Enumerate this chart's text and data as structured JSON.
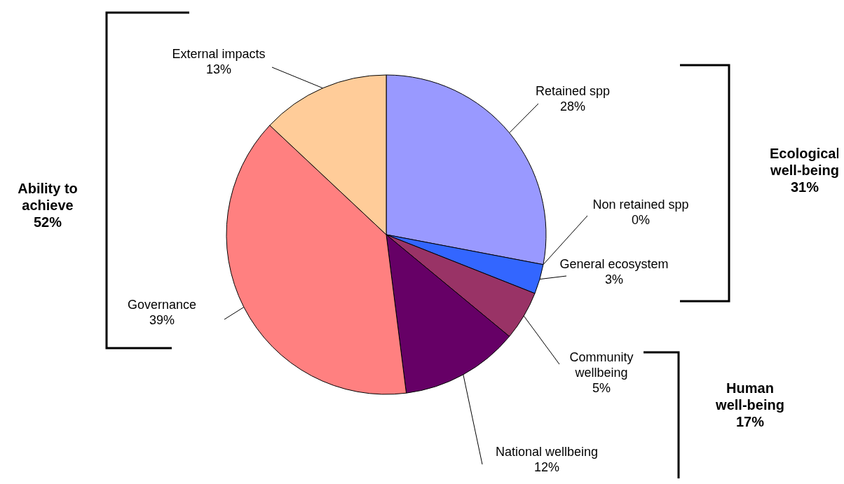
{
  "chart_data": {
    "type": "pie",
    "categories": [
      "Retained spp",
      "Non retained spp",
      "General ecosystem",
      "Community wellbeing",
      "National wellbeing",
      "Governance",
      "External impacts"
    ],
    "values": [
      28,
      0,
      3,
      5,
      12,
      39,
      13
    ],
    "value_labels": [
      "28%",
      "0%",
      "3%",
      "5%",
      "12%",
      "39%",
      "13%"
    ],
    "colors": [
      "#9999ff",
      "#993366",
      "#3366ff",
      "#993366",
      "#660066",
      "#ff8080",
      "#ffcc99"
    ],
    "annotations": [
      "Ability to\nachieve\n52%",
      "Ecological\nwell-being\n31%",
      "Human\nwell-being\n17%"
    ]
  }
}
